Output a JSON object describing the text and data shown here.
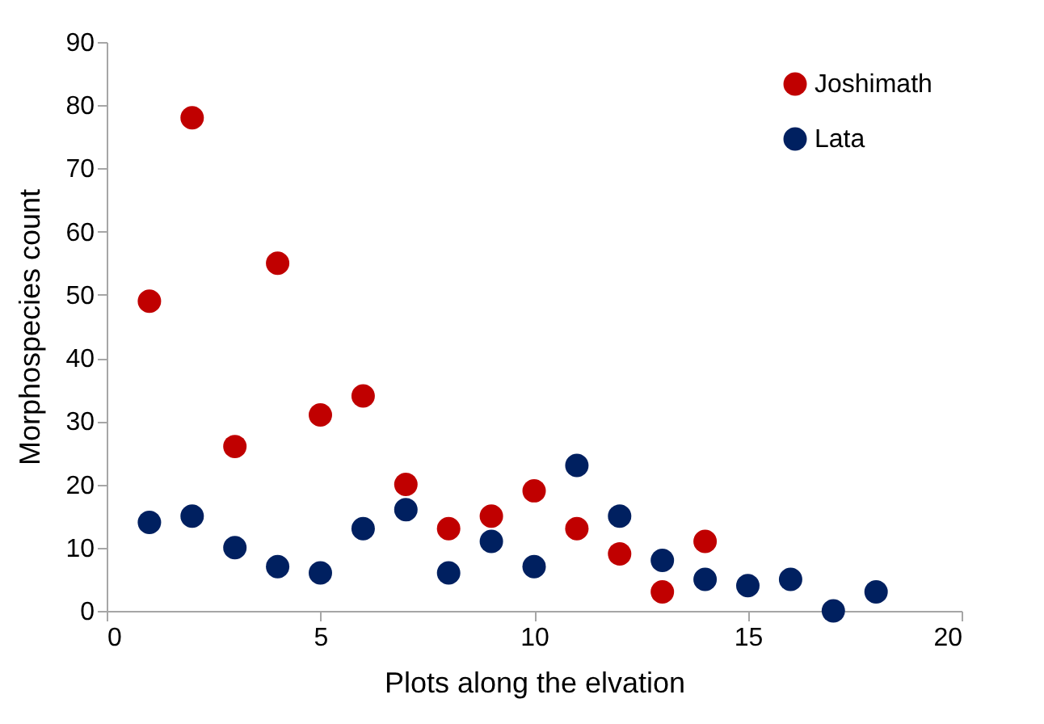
{
  "chart_data": {
    "type": "scatter",
    "xlabel": "Plots along the elvation",
    "ylabel": "Morphospecies count",
    "xlim": [
      0,
      20
    ],
    "xticks": [
      0,
      5,
      10,
      15,
      20
    ],
    "ylim": [
      0,
      90
    ],
    "yticks": [
      0,
      10,
      20,
      30,
      40,
      50,
      60,
      70,
      80,
      90
    ],
    "grid": false,
    "legend": "top right",
    "marker": "circle",
    "series": [
      {
        "name": "Joshimath",
        "color": "#c00000",
        "x": [
          1,
          2,
          3,
          4,
          5,
          6,
          7,
          8,
          9,
          10,
          11,
          12,
          13,
          14
        ],
        "values": [
          49,
          78,
          26,
          55,
          31,
          34,
          20,
          13,
          15,
          19,
          13,
          9,
          3,
          11
        ]
      },
      {
        "name": "Lata",
        "color": "#002060",
        "x": [
          1,
          2,
          3,
          4,
          5,
          6,
          7,
          8,
          9,
          10,
          11,
          12,
          13,
          14,
          15,
          16,
          17,
          18
        ],
        "values": [
          14,
          15,
          10,
          7,
          6,
          13,
          16,
          6,
          11,
          7,
          23,
          15,
          8,
          5,
          4,
          5,
          0,
          3
        ]
      }
    ]
  }
}
